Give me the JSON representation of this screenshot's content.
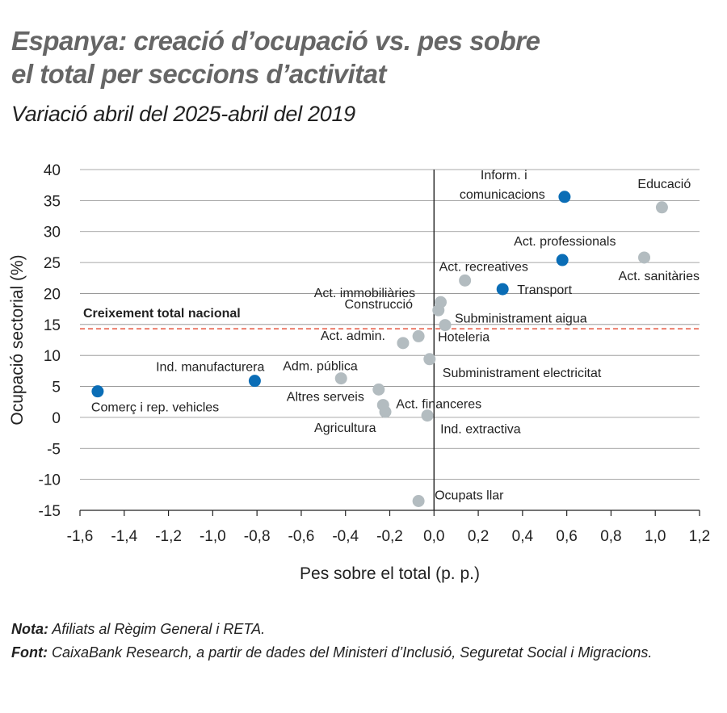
{
  "header": {
    "title_line1": "Espanya: creació d’ocupació vs. pes sobre",
    "title_line2": "el total per seccions d’activitat",
    "subtitle": "Variació abril del 2025-abril del 2019"
  },
  "chart_data": {
    "type": "scatter",
    "xlabel": "Pes sobre el total (p. p.)",
    "ylabel": "Ocupació sectorial (%)",
    "xlim": [
      -1.6,
      1.2
    ],
    "ylim": [
      -15,
      40
    ],
    "x_ticks": [
      "-1,6",
      "-1,4",
      "-1,2",
      "-1,0",
      "-0,8",
      "-0,6",
      "-0,4",
      "-0,2",
      "0,0",
      "0,2",
      "0,4",
      "0,6",
      "0,8",
      "1,0",
      "1,2"
    ],
    "x_tick_values": [
      -1.6,
      -1.4,
      -1.2,
      -1.0,
      -0.8,
      -0.6,
      -0.4,
      -0.2,
      0.0,
      0.2,
      0.4,
      0.6,
      0.8,
      1.0,
      1.2
    ],
    "y_ticks": [
      "40",
      "35",
      "30",
      "25",
      "20",
      "15",
      "10",
      "5",
      "0",
      "-5",
      "-10",
      "-15"
    ],
    "y_tick_values": [
      40,
      35,
      30,
      25,
      20,
      15,
      10,
      5,
      0,
      -5,
      -10,
      -15
    ],
    "grid": "horizontal",
    "reference_line": {
      "label": "Creixement total nacional",
      "y": 14.3,
      "color": "#e8604c"
    },
    "colors": {
      "highlight": "#0a6db6",
      "other": "#b3bcc0"
    },
    "points": [
      {
        "label": "Comerç i rep. vehicles",
        "x": -1.52,
        "y": 4.2,
        "highlight": true
      },
      {
        "label": "Ind. manufacturera",
        "x": -0.81,
        "y": 5.9,
        "highlight": true
      },
      {
        "label": "Adm. pública",
        "x": -0.42,
        "y": 6.3,
        "highlight": false
      },
      {
        "label": "Altres serveis",
        "x": -0.25,
        "y": 4.5,
        "highlight": false
      },
      {
        "label": "Act. financeres",
        "x": -0.23,
        "y": 2.0,
        "highlight": false
      },
      {
        "label": "Agricultura",
        "x": -0.22,
        "y": 0.9,
        "highlight": false
      },
      {
        "label": "Act. admin.",
        "x": -0.14,
        "y": 12.0,
        "highlight": false
      },
      {
        "label": "Hoteleria",
        "x": -0.07,
        "y": 13.1,
        "highlight": false
      },
      {
        "label": "Ocupats llar",
        "x": -0.07,
        "y": -13.5,
        "highlight": false
      },
      {
        "label": "Subministrament electricitat",
        "x": -0.02,
        "y": 9.4,
        "highlight": false
      },
      {
        "label": "Ind. extractiva",
        "x": -0.03,
        "y": 0.3,
        "highlight": false
      },
      {
        "label": "Construcció",
        "x": 0.03,
        "y": 18.6,
        "highlight": false
      },
      {
        "label": "Act. immobiliàries",
        "x": 0.02,
        "y": 17.3,
        "highlight": false
      },
      {
        "label": "Subministrament aigua",
        "x": 0.05,
        "y": 14.9,
        "highlight": false
      },
      {
        "label": "Act. recreatives",
        "x": 0.14,
        "y": 22.1,
        "highlight": false
      },
      {
        "label": "Transport",
        "x": 0.31,
        "y": 20.7,
        "highlight": true
      },
      {
        "label": "Act. professionals",
        "x": 0.58,
        "y": 25.4,
        "highlight": true
      },
      {
        "label": "Inform. i comunicacions",
        "x": 0.59,
        "y": 35.6,
        "highlight": true
      },
      {
        "label": "Act. sanitàries",
        "x": 0.95,
        "y": 25.8,
        "highlight": false
      },
      {
        "label": "Educació",
        "x": 1.03,
        "y": 33.9,
        "highlight": false
      }
    ]
  },
  "notes": {
    "nota_label": "Nota:",
    "nota_text": " Afiliats al Règim General i RETA.",
    "font_label": "Font:",
    "font_text": " CaixaBank Research, a partir de dades del Ministeri d’Inclusió, Seguretat Social i Migracions."
  }
}
